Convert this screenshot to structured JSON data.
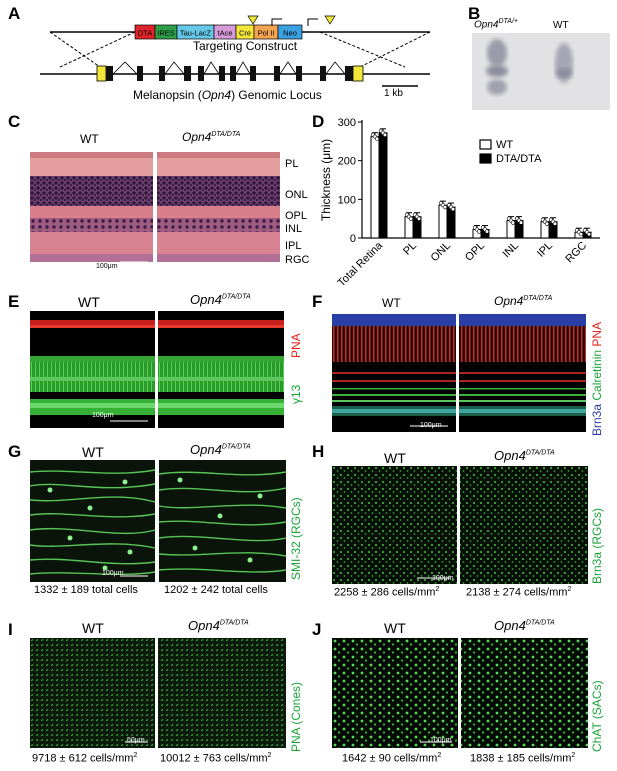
{
  "panels": {
    "A": {
      "label": "A",
      "construct_parts": [
        "DTA",
        "IRES",
        "Tau-LacZ",
        "tAce",
        "Cre",
        "Pol II",
        "Neo"
      ],
      "construct_colors": [
        "#e0242b",
        "#2e9e48",
        "#66c8e8",
        "#d69ad8",
        "#f2e63a",
        "#f3a450",
        "#3aa0e0"
      ],
      "construct_title": "Targeting Construct",
      "locus_title_pre": "Melanopsin (",
      "locus_title_gene": "Opn4",
      "locus_title_post": ") Genomic Locus",
      "scale": "1 kb"
    },
    "B": {
      "label": "B",
      "lane1_gene": "Opn4",
      "lane1_sup": "DTA/+",
      "lane2": "WT"
    },
    "C": {
      "label": "C",
      "wt": "WT",
      "mut_gene": "Opn4",
      "mut_sup": "DTA/DTA",
      "layers": [
        "PL",
        "ONL",
        "OPL",
        "INL",
        "IPL",
        "RGC"
      ],
      "scale": "100μm"
    },
    "D": {
      "label": "D"
    },
    "E": {
      "label": "E",
      "wt": "WT",
      "mut_gene": "Opn4",
      "mut_sup": "DTA/DTA",
      "stain_red": "PNA",
      "stain_green": "γ13",
      "scale": "100μm"
    },
    "F": {
      "label": "F",
      "wt": "WT",
      "mut_gene": "Opn4",
      "mut_sup": "DTA/DTA",
      "stain_blue": "Brn3a",
      "stain_green": "Calretinin",
      "stain_red": "PNA",
      "scale": "100μm"
    },
    "G": {
      "label": "G",
      "wt": "WT",
      "mut_gene": "Opn4",
      "mut_sup": "DTA/DTA",
      "stain": "SMI-32 (RGCs)",
      "scale": "100μm",
      "count_wt": "1332 ± 189 total cells",
      "count_mut": "1202 ± 242 total cells"
    },
    "H": {
      "label": "H",
      "wt": "WT",
      "mut_gene": "Opn4",
      "mut_sup": "DTA/DTA",
      "stain": "Brn3a (RGCs)",
      "scale": "100μm",
      "count_wt": "2258 ± 286 cells/mm",
      "count_mut": "2138 ± 274 cells/mm",
      "sup": "2"
    },
    "I": {
      "label": "I",
      "wt": "WT",
      "mut_gene": "Opn4",
      "mut_sup": "DTA/DTA",
      "stain": "PNA (Cones)",
      "scale": "50μm",
      "count_wt": "9718 ± 612 cells/mm",
      "count_mut": "10012 ± 763 cells/mm",
      "sup": "2"
    },
    "J": {
      "label": "J",
      "wt": "WT",
      "mut_gene": "Opn4",
      "mut_sup": "DTA/DTA",
      "stain": "ChAT (SACs)",
      "scale": "100μm",
      "count_wt": "1642 ± 90 cells/mm",
      "count_mut": "1838 ± 185 cells/mm",
      "sup": "2"
    }
  },
  "chart_data": {
    "type": "bar",
    "ylabel": "Thickness (μm)",
    "ylim": [
      0,
      300
    ],
    "yticks": [
      0,
      100,
      200,
      300
    ],
    "categories": [
      "Total Retina",
      "PL",
      "ONL",
      "OPL",
      "INL",
      "IPL",
      "RGC"
    ],
    "series": [
      {
        "name": "WT",
        "color": "#ffffff",
        "values": [
          262,
          55,
          85,
          22,
          45,
          42,
          15
        ]
      },
      {
        "name": "DTA/DTA",
        "color": "#000000",
        "values": [
          272,
          55,
          80,
          22,
          45,
          42,
          15
        ]
      }
    ],
    "legend": "top-right"
  }
}
